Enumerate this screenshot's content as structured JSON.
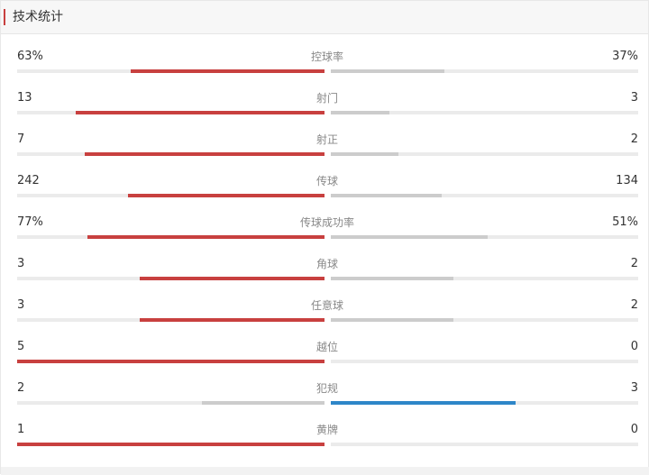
{
  "header": {
    "title": "技术统计"
  },
  "colors": {
    "accent": "#c8403f",
    "winner_left": "#c8403f",
    "winner_right": "#2e86c8",
    "loser": "#cccccc",
    "track": "#ebebeb"
  },
  "stats": [
    {
      "label": "控球率",
      "left_display": "63%",
      "right_display": "37%",
      "left_fraction": 0.63,
      "right_fraction": 0.37
    },
    {
      "label": "射门",
      "left_display": "13",
      "right_display": "3",
      "left_fraction": 0.81,
      "right_fraction": 0.19
    },
    {
      "label": "射正",
      "left_display": "7",
      "right_display": "2",
      "left_fraction": 0.78,
      "right_fraction": 0.22
    },
    {
      "label": "传球",
      "left_display": "242",
      "right_display": "134",
      "left_fraction": 0.64,
      "right_fraction": 0.36
    },
    {
      "label": "传球成功率",
      "left_display": "77%",
      "right_display": "51%",
      "left_fraction": 0.77,
      "right_fraction": 0.51
    },
    {
      "label": "角球",
      "left_display": "3",
      "right_display": "2",
      "left_fraction": 0.6,
      "right_fraction": 0.4
    },
    {
      "label": "任意球",
      "left_display": "3",
      "right_display": "2",
      "left_fraction": 0.6,
      "right_fraction": 0.4
    },
    {
      "label": "越位",
      "left_display": "5",
      "right_display": "0",
      "left_fraction": 1.0,
      "right_fraction": 0.0
    },
    {
      "label": "犯规",
      "left_display": "2",
      "right_display": "3",
      "left_fraction": 0.4,
      "right_fraction": 0.6
    },
    {
      "label": "黄牌",
      "left_display": "1",
      "right_display": "0",
      "left_fraction": 1.0,
      "right_fraction": 0.0
    }
  ]
}
